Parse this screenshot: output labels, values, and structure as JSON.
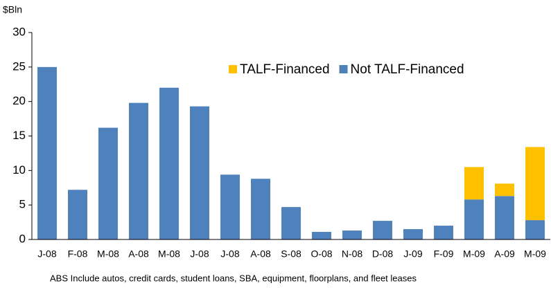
{
  "chart_data": {
    "type": "stacked-bar",
    "ylabel": "$Bln",
    "note": "ABS Include autos, credit cards, student loans, SBA, equipment, floorplans, and fleet leases",
    "categories": [
      "J-08",
      "F-08",
      "M-08",
      "A-08",
      "M-08",
      "J-08",
      "J-08",
      "A-08",
      "S-08",
      "O-08",
      "N-08",
      "D-08",
      "J-09",
      "F-09",
      "M-09",
      "A-09",
      "M-09"
    ],
    "series": [
      {
        "name": "TALF-Financed",
        "color": "#ffc000",
        "values": [
          0,
          0,
          0,
          0,
          0,
          0,
          0,
          0,
          0,
          0,
          0,
          0,
          0,
          0,
          4.7,
          1.8,
          10.6
        ]
      },
      {
        "name": "Not TALF-Financed",
        "color": "#4f81bd",
        "values": [
          25,
          7.2,
          16.2,
          19.8,
          22,
          19.3,
          9.4,
          8.8,
          4.7,
          1.1,
          1.3,
          2.7,
          1.5,
          2.0,
          5.8,
          6.3,
          2.8
        ]
      }
    ],
    "ylim": [
      0,
      30
    ],
    "yticks": [
      0,
      5,
      10,
      15,
      20,
      25,
      30
    ]
  }
}
